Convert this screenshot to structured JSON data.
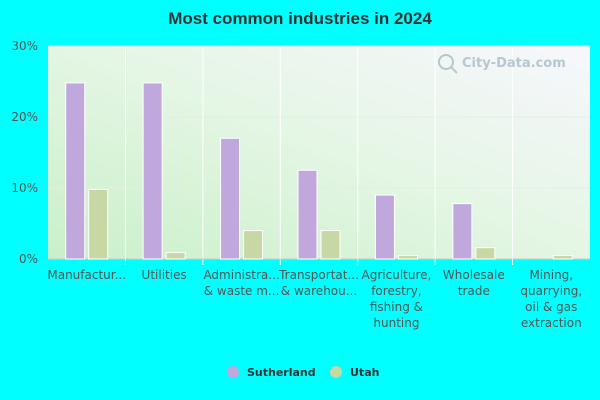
{
  "chart_data": {
    "type": "bar",
    "title": "Most common industries in 2024",
    "xlabel": "",
    "ylabel": "",
    "ylim": [
      0,
      30
    ],
    "yticks": [
      0,
      10,
      20,
      30
    ],
    "ytick_labels": [
      "0%",
      "10%",
      "20%",
      "30%"
    ],
    "categories": [
      [
        "Manufactur..."
      ],
      [
        "Utilities"
      ],
      [
        "Administra...",
        "& waste m..."
      ],
      [
        "Transportat...",
        "& warehou..."
      ],
      [
        "Agriculture,",
        "forestry,",
        "fishing &",
        "hunting"
      ],
      [
        "Wholesale",
        "trade"
      ],
      [
        "Mining,",
        "quarrying,",
        "oil & gas",
        "extraction"
      ]
    ],
    "series": [
      {
        "name": "Sutherland",
        "color": "#c0a8dc",
        "values": [
          24.8,
          24.8,
          17.0,
          12.5,
          9.0,
          7.8,
          0.0
        ]
      },
      {
        "name": "Utah",
        "color": "#c8d8a4",
        "values": [
          9.8,
          0.9,
          4.0,
          4.0,
          0.5,
          1.6,
          0.5
        ]
      }
    ],
    "grid": true,
    "legend": "bottom-center",
    "watermark": "City-Data.com"
  }
}
